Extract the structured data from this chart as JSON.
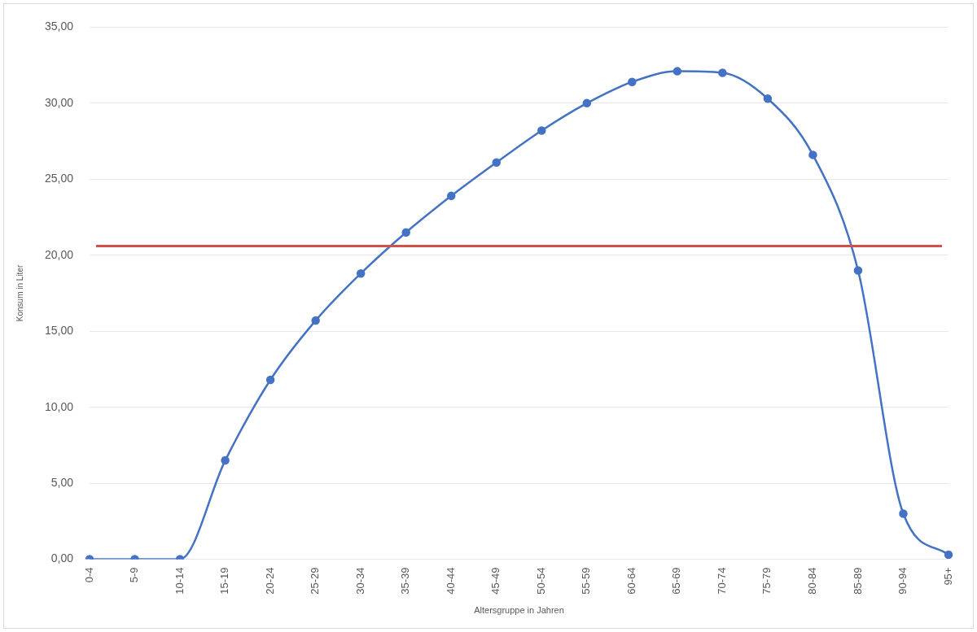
{
  "chart_data": {
    "type": "line",
    "xlabel": "Altersgruppe in Jahren",
    "ylabel": "Konsum in Liter",
    "categories": [
      "0-4",
      "5-9",
      "10-14",
      "15-19",
      "20-24",
      "25-29",
      "30-34",
      "35-39",
      "40-44",
      "45-49",
      "50-54",
      "55-59",
      "60-64",
      "65-69",
      "70-74",
      "75-79",
      "80-84",
      "85-89",
      "90-94",
      "95+"
    ],
    "series": [
      {
        "color": "#4472c4",
        "values": [
          0,
          0,
          0,
          6.5,
          11.8,
          15.7,
          18.8,
          21.5,
          23.9,
          26.1,
          28.2,
          30.0,
          31.4,
          32.1,
          32.0,
          30.3,
          26.6,
          19.0,
          3.0,
          0.3
        ]
      }
    ],
    "ylim": [
      0,
      35
    ],
    "yticks": [
      {
        "value": 0,
        "label": "0,00"
      },
      {
        "value": 5,
        "label": "5,00"
      },
      {
        "value": 10,
        "label": "10,00"
      },
      {
        "value": 15,
        "label": "15,00"
      },
      {
        "value": 20,
        "label": "20,00"
      },
      {
        "value": 25,
        "label": "25,00"
      },
      {
        "value": 30,
        "label": "30,00"
      },
      {
        "value": 35,
        "label": "35,00"
      }
    ],
    "ref_lines": [
      {
        "axis": "y",
        "value": 20.6,
        "color": "#d0504a"
      }
    ],
    "grid": "y",
    "marker": "circle",
    "legend": false
  }
}
